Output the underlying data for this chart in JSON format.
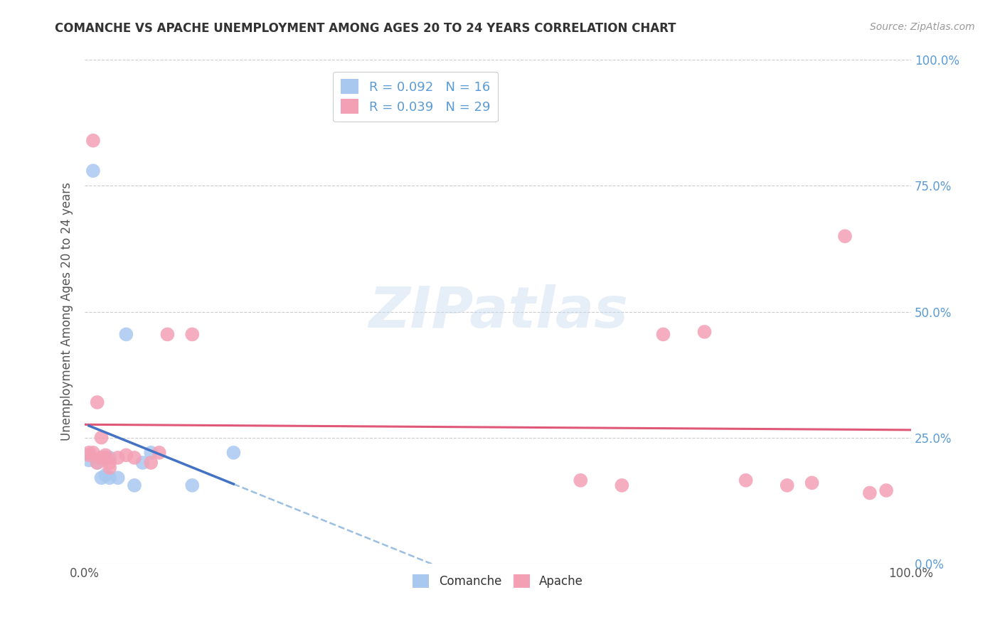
{
  "title": "COMANCHE VS APACHE UNEMPLOYMENT AMONG AGES 20 TO 24 YEARS CORRELATION CHART",
  "source": "Source: ZipAtlas.com",
  "ylabel": "Unemployment Among Ages 20 to 24 years",
  "xlim": [
    0,
    1.0
  ],
  "ylim": [
    0,
    1.0
  ],
  "xtick_positions": [
    0.0,
    1.0
  ],
  "xtick_labels": [
    "0.0%",
    "100.0%"
  ],
  "ytick_positions": [
    0.0,
    0.25,
    0.5,
    0.75,
    1.0
  ],
  "ytick_labels": [
    "0.0%",
    "25.0%",
    "50.0%",
    "75.0%",
    "100.0%"
  ],
  "watermark_text": "ZIPatlas",
  "comanche_R": "0.092",
  "comanche_N": "16",
  "apache_R": "0.039",
  "apache_N": "29",
  "comanche_color": "#a8c8f0",
  "apache_color": "#f4a0b4",
  "comanche_solid_line_color": "#4472c4",
  "apache_solid_line_color": "#e05878",
  "dashed_line_color": "#90b8e0",
  "comanche_x": [
    0.005,
    0.01,
    0.015,
    0.02,
    0.02,
    0.025,
    0.025,
    0.03,
    0.03,
    0.04,
    0.05,
    0.06,
    0.07,
    0.08,
    0.13,
    0.18
  ],
  "comanche_y": [
    0.205,
    0.78,
    0.2,
    0.21,
    0.17,
    0.175,
    0.21,
    0.17,
    0.21,
    0.17,
    0.455,
    0.155,
    0.2,
    0.22,
    0.155,
    0.22
  ],
  "apache_x": [
    0.005,
    0.005,
    0.01,
    0.01,
    0.015,
    0.015,
    0.02,
    0.02,
    0.025,
    0.025,
    0.03,
    0.03,
    0.04,
    0.05,
    0.06,
    0.08,
    0.09,
    0.1,
    0.13,
    0.6,
    0.65,
    0.7,
    0.75,
    0.8,
    0.85,
    0.88,
    0.92,
    0.95,
    0.97
  ],
  "apache_y": [
    0.215,
    0.22,
    0.84,
    0.22,
    0.32,
    0.2,
    0.25,
    0.21,
    0.215,
    0.21,
    0.19,
    0.2,
    0.21,
    0.215,
    0.21,
    0.2,
    0.22,
    0.455,
    0.455,
    0.165,
    0.155,
    0.455,
    0.46,
    0.165,
    0.155,
    0.16,
    0.65,
    0.14,
    0.145
  ],
  "background_color": "#ffffff",
  "grid_color": "#cccccc",
  "right_tick_color": "#5b9bd5",
  "title_color": "#333333",
  "source_color": "#999999",
  "ylabel_color": "#555555"
}
